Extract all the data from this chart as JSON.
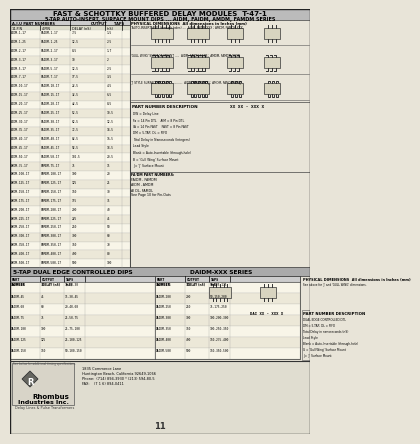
{
  "bg_color": "#e8e4d8",
  "white": "#ffffff",
  "black": "#000000",
  "gray_header": "#888888",
  "gray_light": "#cccccc",
  "title_main": "FAST & SCHOTTKY BUFFERED DELAY MODULES",
  "title_ref": "T-47-1",
  "subtitle": "5-TAP AUTO-INSERT, SURFACE MOUNT DIPS ... AIDM, FAIDM, AMDM, FAMDM SERIES",
  "col1_header": "A.I.U PART NUMBERS",
  "col1a": "14-PIN",
  "col1b": "4-PIN",
  "col2": "OUTPUT\nDELAY (nS)",
  "col3": "TAPS\n(nS)",
  "table1_rows": [
    [
      "AIDM-1-17",
      "FAIDM-1-17",
      "7.5",
      "1.5"
    ],
    [
      "AIDM-1-25",
      "FAIDM-1-25",
      "12.5",
      "2.5"
    ],
    [
      "AIDM-2-17",
      "FAIDM-2-17",
      "8.5",
      "1.7"
    ],
    [
      "AIDM-3-17",
      "FAIDM-3-17",
      "10",
      "2"
    ],
    [
      "AIDM-5-17",
      "FAIDM-5-17",
      "12.5",
      "2.5"
    ],
    [
      "AIDM-7-17",
      "FAIDM-7-17",
      "17.5",
      "3.5"
    ],
    [
      "AIDM-10-17",
      "FAIDM-10-17",
      "22.5",
      "4.5"
    ],
    [
      "AIDM-15-17",
      "FAIDM-15-17",
      "32.5",
      "6.5"
    ],
    [
      "AIDM-20-17",
      "FAIDM-20-17",
      "42.5",
      "8.5"
    ],
    [
      "AIDM-25-17",
      "FAIDM-25-17",
      "52.5",
      "10.5"
    ],
    [
      "AIDM-30-17",
      "FAIDM-30-17",
      "62.5",
      "12.5"
    ],
    [
      "AIDM-35-17",
      "FAIDM-35-17",
      "72.5",
      "14.5"
    ],
    [
      "AIDM-40-17",
      "FAIDM-40-17",
      "82.5",
      "16.5"
    ],
    [
      "AIDM-45-17",
      "FAIDM-45-17",
      "92.5",
      "18.5"
    ],
    [
      "AIDM-50-17",
      "FAIDM-50-17",
      "102.5",
      "20.5"
    ],
    [
      "AMDM-75-17",
      "FAMDM-75-17",
      "75",
      "15"
    ],
    [
      "AMDM-100-17",
      "FAMDM-100-17",
      "100",
      "20"
    ],
    [
      "AMDM-125-17",
      "FAMDM-125-17",
      "125",
      "25"
    ],
    [
      "AMDM-150-17",
      "FAMDM-150-17",
      "150",
      "30"
    ],
    [
      "AMDM-175-17",
      "FAMDM-175-17",
      "175",
      "35"
    ],
    [
      "AMDM-200-17",
      "FAMDM-200-17",
      "200",
      "40"
    ],
    [
      "AMDM-225-17",
      "FAMDM-225-17",
      "225",
      "45"
    ],
    [
      "AMDM-250-17",
      "FAMDM-250-17",
      "250",
      "50"
    ],
    [
      "AMDM-300-17",
      "FAMDM-300-17",
      "300",
      "60"
    ],
    [
      "AMDM-350-17",
      "FAMDM-350-17",
      "350",
      "70"
    ],
    [
      "AMDM-400-17",
      "FAMDM-400-17",
      "400",
      "80"
    ],
    [
      "AMDM-500-17",
      "FAMDM-500-17",
      "500",
      "100"
    ]
  ],
  "phys_title": "PHYSICAL DIMENSIONS  All dimensions in Inches (mm)",
  "auto_ins": "'AUTO-INSERTABLE' (through holes) ....  AIDM, FAIDM-XXX ; AMDM, FAMDM-XXX",
  "gull_wing": "'GULL WING' SURFACE MOUNT .....  AIDM, FAIDM-XXXB ; AMDM, FAMDM-XXXB",
  "j_style": "'J' STYLE SURFACE MOUNT ...............  AIDM, FAIDM-XXXJ ; AMDM, FAMDM-XXXJ",
  "pn_desc": "PART NUMBER DESCRIPTION",
  "pn_ex": "XX XX - XXX X",
  "pn_lines": [
    "DW = Delay Line",
    "Fa = 14 Pin DTL    AIM = 8 Pin DTL",
    "IA = 14 Pin FAST    FAST = 8 Pin FAST",
    "DM = 5-TAP, DL = FIFO",
    "Total Delay in Nanoseconds (Integers)",
    "Lead Style",
    "Blank = Auto-Insertable (through-hole)",
    "B = 'Gull Wing' Surface Mount",
    "J = 'J' Surface Mount"
  ],
  "fa_pn": "FA/DM PART NUMBERS:",
  "fa_lines": [
    "FAIDM , FAMDM",
    "AIDM , AMDM",
    "AI DL, FAMDL"
  ],
  "see_page": "See Page 10 for Pin-Outs",
  "sect2_title": "5-TAP DUAL EDGE CONTROLLED DIPS",
  "sect2_dots": "......................................",
  "sect2_series": "DAIDM-XXX SERIES",
  "t2_h1": "PART\nNUMBER",
  "t2_h2": "OUTPUT\nDELAY (nS)",
  "t2_h3": "TAPS\n(nS)",
  "table2_rows": [
    [
      "DAIDM-30",
      "30",
      "10-20-30",
      "DAIDM-175",
      "175",
      "50-125-175"
    ],
    [
      "DAIDM-45",
      "45",
      "15-30-45",
      "DAIDM-200",
      "200",
      "50-150-200"
    ],
    [
      "DAIDM-60",
      "60",
      "20-40-60",
      "DAIDM-250",
      "250",
      "75-175-250"
    ],
    [
      "DAIDM-75",
      "75",
      "25-50-75",
      "DAIDM-300",
      "300",
      "100-200-300"
    ],
    [
      "DAIDM-100",
      "100",
      "25-75-100",
      "DAIDM-350",
      "350",
      "100-250-350"
    ],
    [
      "DAIDM-125",
      "125",
      "25-100-125",
      "DAIDM-400",
      "400",
      "150-275-400"
    ],
    [
      "DAIDM-150",
      "150",
      "50-100-150",
      "DAIDM-500",
      "500",
      "150-350-500"
    ]
  ],
  "phys2_title": "PHYSICAL DIMENSIONS  All dimensions in Inches (mm)",
  "see_above": "See above for 'J' and 'GULL WING' dimensions.",
  "pn2_desc": "PART NUMBER DESCRIPTION",
  "pn2_ex": "DAI XX - XXX X",
  "pn2_lines": [
    "DUAL EDGE CONTROLLED DTL",
    "DM = 5-TAP, DL = FIFO",
    "Total Delay in nanoseconds (nS)",
    "Lead Style",
    "Blank = Auto-Insertable (through-hole)",
    "G = 'Gull Wing' Surface Mount",
    "J = 'J' Surface Mount"
  ],
  "footnote": "See below for additional timing specifications.",
  "company": "Rhombus",
  "company2": "Industries Inc.",
  "company3": "Delay Lines & Pulse Transformers",
  "addr1": "1835 Commerce Lane",
  "addr2": "Huntington Beach, California 92649-1066",
  "phone": "Phone:  (714) 894-3930 * (213) 594-80-5",
  "fax": "FAX:    (7 1 6) 894-0411",
  "page_num": "11"
}
